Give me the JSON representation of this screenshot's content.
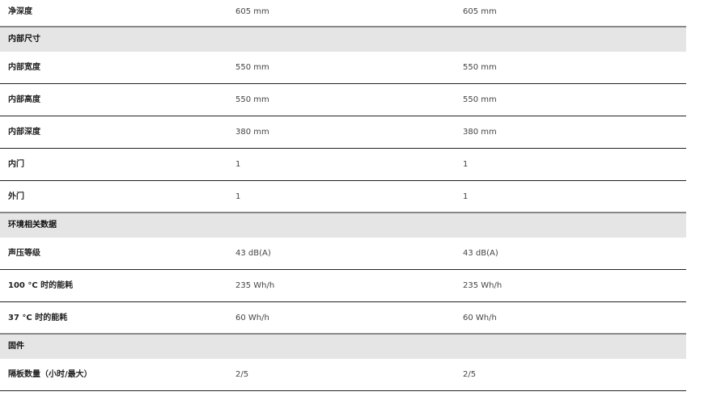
{
  "table": {
    "rows": [
      {
        "label": "净深度",
        "values": [
          "605 mm",
          "605 mm"
        ]
      },
      {
        "section": "内部尺寸"
      },
      {
        "label": "内部宽度",
        "values": [
          "550 mm",
          "550 mm"
        ]
      },
      {
        "label": "内部高度",
        "values": [
          "550 mm",
          "550 mm"
        ]
      },
      {
        "label": "内部深度",
        "values": [
          "380 mm",
          "380 mm"
        ]
      },
      {
        "label": "内门",
        "values": [
          "1",
          "1"
        ]
      },
      {
        "label": "外门",
        "values": [
          "1",
          "1"
        ]
      },
      {
        "section": "环境相关数据"
      },
      {
        "label": "声压等级",
        "values": [
          "43 dB(A)",
          "43 dB(A)"
        ]
      },
      {
        "label": "100 °C 时的能耗",
        "values": [
          "235 Wh/h",
          "235 Wh/h"
        ]
      },
      {
        "label": "37 °C 时的能耗",
        "values": [
          "60 Wh/h",
          "60 Wh/h"
        ]
      },
      {
        "section": "固件"
      },
      {
        "label": "隔板数量（小时/最大）",
        "values": [
          "2/5",
          "2/5"
        ]
      }
    ]
  }
}
